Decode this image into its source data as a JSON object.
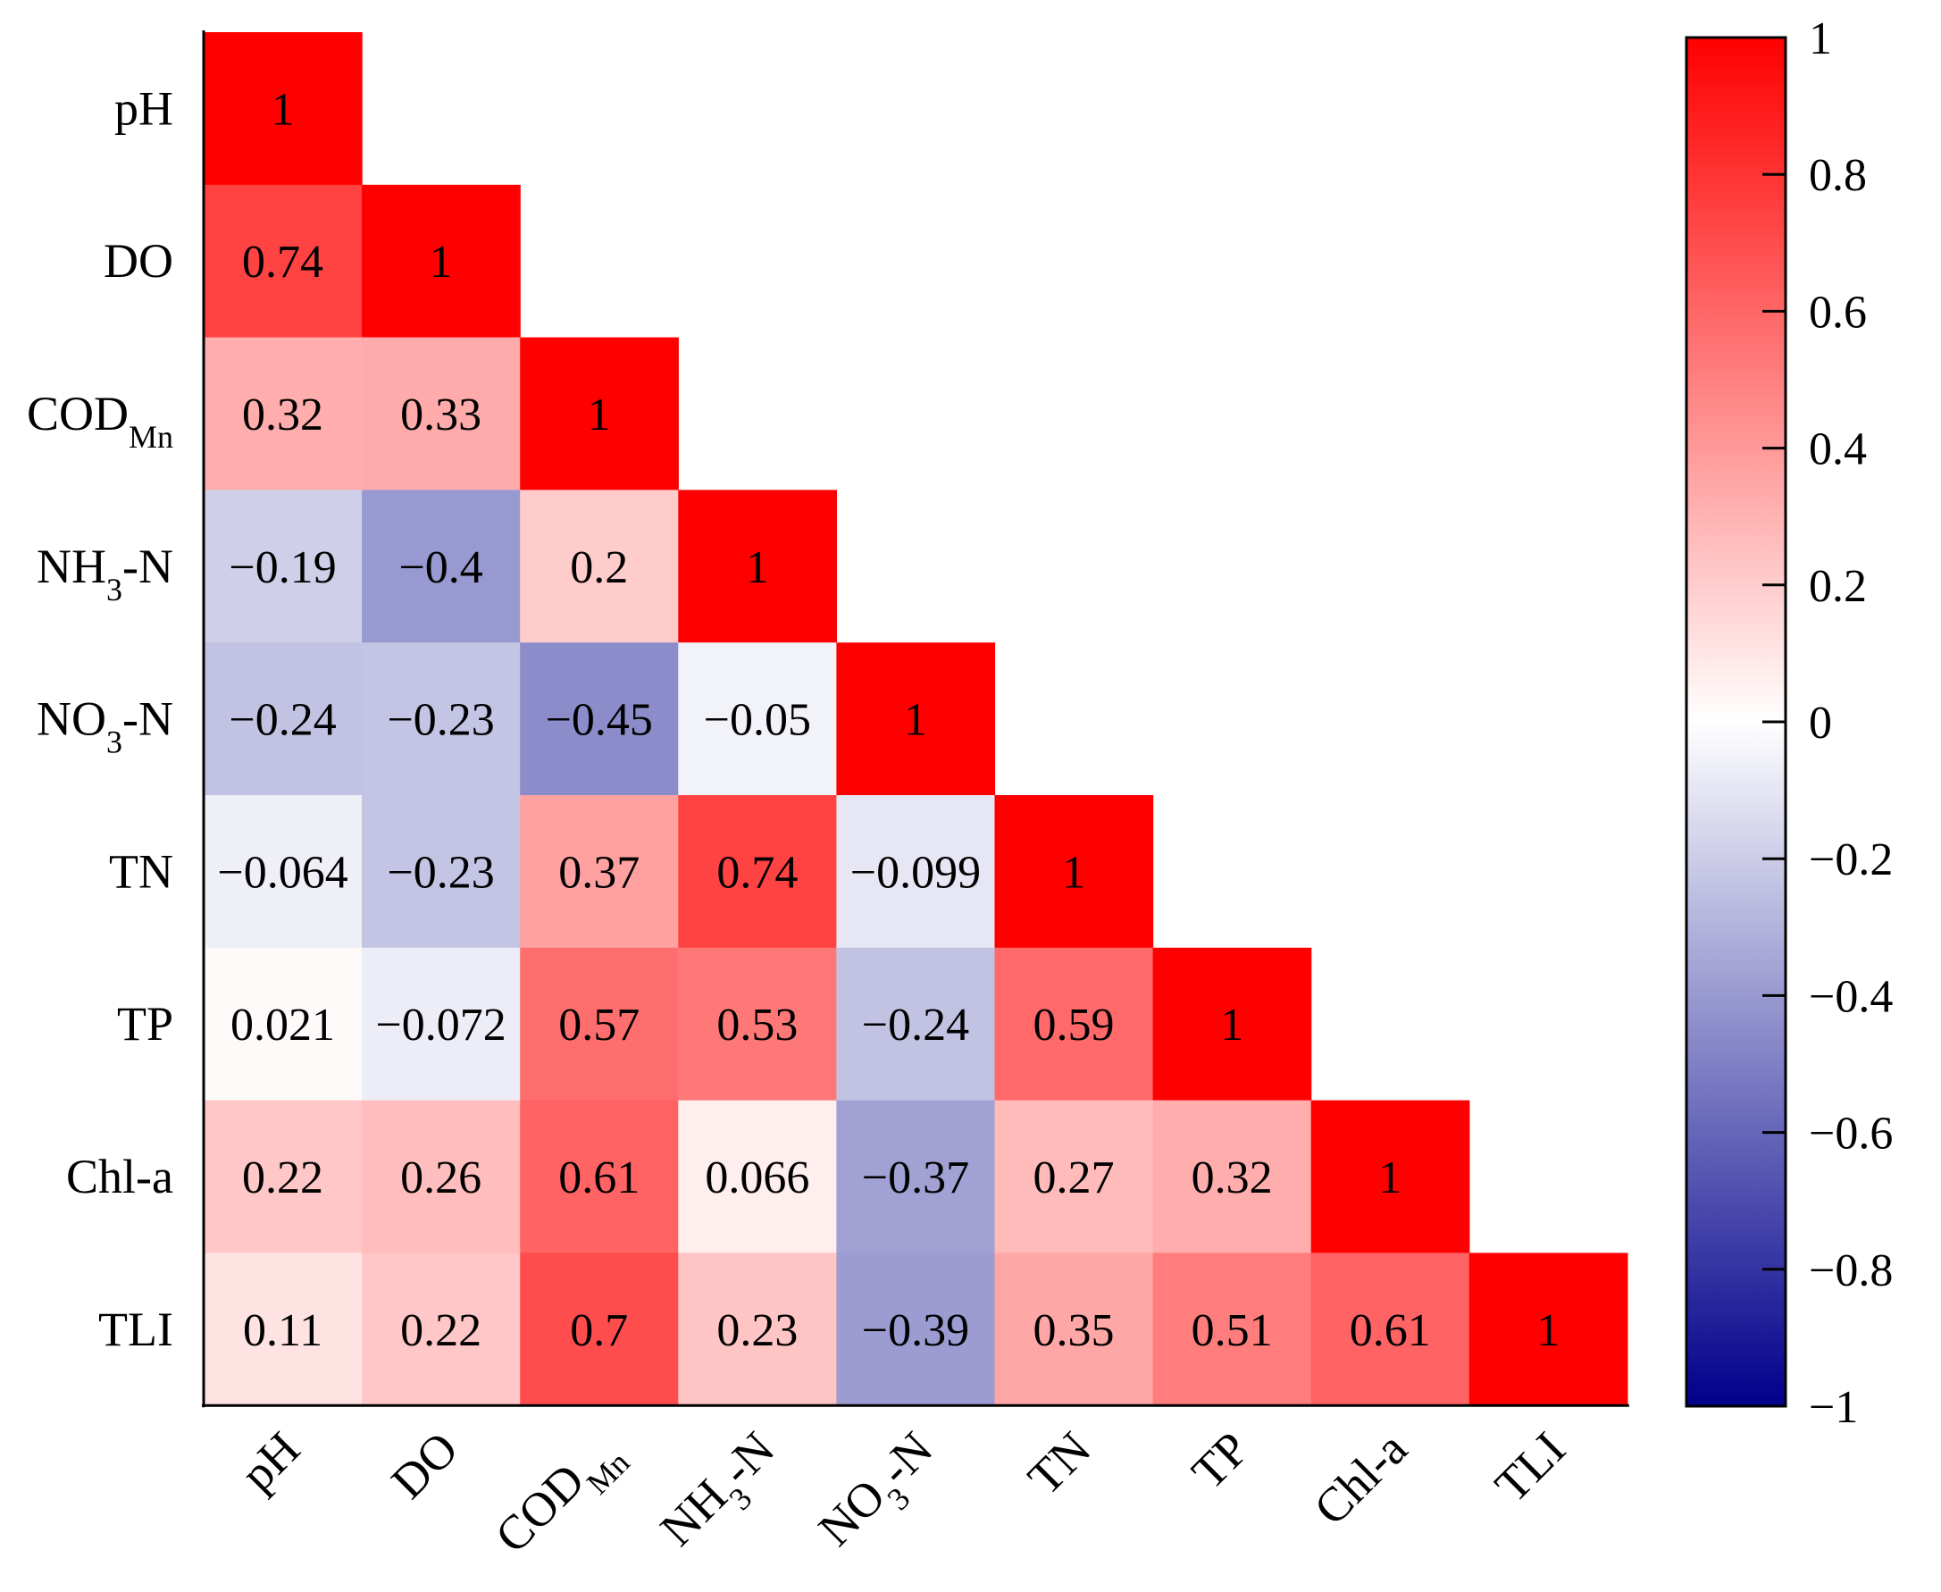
{
  "chart_data": {
    "type": "heatmap",
    "title": "",
    "subtitle": "",
    "variables": [
      {
        "key": "pH",
        "base": "pH",
        "sub": ""
      },
      {
        "key": "DO",
        "base": "DO",
        "sub": ""
      },
      {
        "key": "CODMn",
        "base": "COD",
        "sub": "Mn"
      },
      {
        "key": "NH3-N",
        "base": "NH",
        "sub": "3",
        "suffix": "-N"
      },
      {
        "key": "NO3-N",
        "base": "NO",
        "sub": "3",
        "suffix": "-N"
      },
      {
        "key": "TN",
        "base": "TN",
        "sub": ""
      },
      {
        "key": "TP",
        "base": "TP",
        "sub": ""
      },
      {
        "key": "Chl-a",
        "base": "Chl-a",
        "sub": ""
      },
      {
        "key": "TLI",
        "base": "TLI",
        "sub": ""
      }
    ],
    "matrix_lower": [
      [
        "1"
      ],
      [
        "0.74",
        "1"
      ],
      [
        "0.32",
        "0.33",
        "1"
      ],
      [
        "−0.19",
        "−0.4",
        "0.2",
        "1"
      ],
      [
        "−0.24",
        "−0.23",
        "−0.45",
        "−0.05",
        "1"
      ],
      [
        "−0.064",
        "−0.23",
        "0.37",
        "0.74",
        "−0.099",
        "1"
      ],
      [
        "0.021",
        "−0.072",
        "0.57",
        "0.53",
        "−0.24",
        "0.59",
        "1"
      ],
      [
        "0.22",
        "0.26",
        "0.61",
        "0.066",
        "−0.37",
        "0.27",
        "0.32",
        "1"
      ],
      [
        "0.11",
        "0.22",
        "0.7",
        "0.23",
        "−0.39",
        "0.35",
        "0.51",
        "0.61",
        "1"
      ]
    ],
    "colorbar": {
      "range": [
        -1,
        1
      ],
      "ticks": [
        "1",
        "0.8",
        "0.6",
        "0.4",
        "0.2",
        "0",
        "−0.2",
        "−0.4",
        "−0.6",
        "−0.8",
        "−1"
      ],
      "tick_values": [
        1,
        0.8,
        0.6,
        0.4,
        0.2,
        0,
        -0.2,
        -0.4,
        -0.6,
        -0.8,
        -1
      ],
      "colors": {
        "negative": "#00008b",
        "zero": "#ffffff",
        "positive": "#ff0000"
      }
    },
    "text_colors": {
      "dark": "#000000",
      "light": "#ffffff"
    }
  }
}
